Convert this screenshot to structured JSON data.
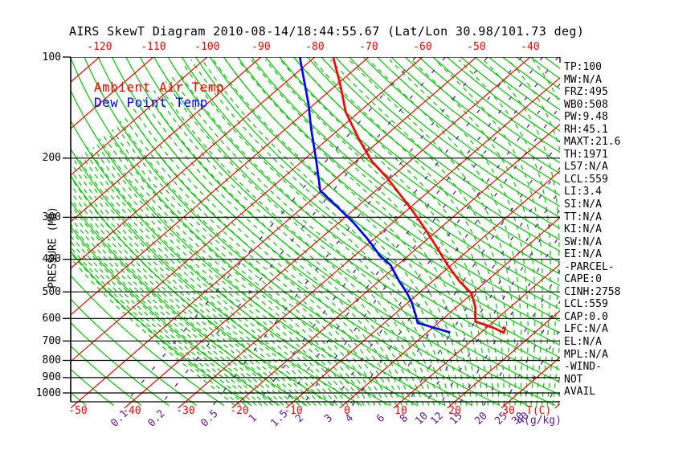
{
  "title": "AIRS SkewT Diagram 2010-08-14/18:44:55.67 (Lat/Lon 30.98/101.73 deg)",
  "legend": {
    "ambient_label": "Ambient Air Temp",
    "dew_label": "Dew Point Temp"
  },
  "info_panel": {
    "lines": [
      "TP:100",
      "MW:N/A",
      "FRZ:495",
      "WB0:508",
      "PW:9.48",
      "RH:45.1",
      "MAXT:21.6",
      "TH:1971",
      "L57:N/A",
      "LCL:559",
      "LI:3.4",
      "SI:N/A",
      "TT:N/A",
      "KI:N/A",
      "SW:N/A",
      "EI:N/A",
      "-PARCEL-",
      "CAPE:0",
      "CINH:2758",
      "LCL:559",
      "CAP:0.0",
      "LFC:N/A",
      "EL:N/A",
      "MPL:N/A",
      "-WIND-",
      "NOT",
      "AVAIL"
    ]
  },
  "chart_data": {
    "type": "line",
    "subtype": "skewt-log-p",
    "title": "AIRS SkewT Diagram 2010-08-14/18:44:55.67 (Lat/Lon 30.98/101.73 deg)",
    "pressure_axis_label": "PRESSURE (MB)",
    "temp_axis_label": "T(C)",
    "mixing_axis_label": "(g/kg)",
    "pressure_ticks_mb": [
      100,
      200,
      300,
      400,
      500,
      600,
      700,
      800,
      900,
      1000
    ],
    "top_temp_ticks_c": [
      -120,
      -110,
      -100,
      -90,
      -80,
      -70,
      -60,
      -50,
      -40
    ],
    "bottom_temp_ticks_c": [
      -50,
      -40,
      -30,
      -20,
      -10,
      0,
      10,
      20,
      30
    ],
    "mixing_ratio_ticks_gkg": [
      0.1,
      0.2,
      0.5,
      1,
      1.5,
      2,
      3,
      4,
      6,
      8,
      10,
      12,
      15,
      20,
      25,
      30
    ],
    "mixing_ratio_lines_gkg": [
      0.1,
      0.2,
      0.5,
      1,
      1.5,
      2,
      3,
      4,
      6,
      8,
      10,
      12,
      15,
      20,
      25,
      30,
      40
    ],
    "overlap_tick_gkg": "40",
    "isotherms_c": {
      "min": -130,
      "max": 40,
      "step": 10
    },
    "dry_adiabats_theta_k": {
      "min": 210,
      "max": 470,
      "step": 5
    },
    "moist_adiabats_start_c": {
      "min": -20,
      "max": 40,
      "step": 1
    },
    "pressure_range_mb": [
      100,
      1000
    ],
    "colors": {
      "isotherm": "#ff0000",
      "dry_adiabat": "#00c800",
      "moist_adiabat": "#00c800",
      "mixing_ratio": "#5a1b9a",
      "isobar": "#000000",
      "ambient": "#ff0000",
      "dewpoint": "#0000ff"
    },
    "series": [
      {
        "name": "Ambient Air Temp",
        "color": "#ff0000",
        "points": [
          {
            "p": 100,
            "t": -76.6
          },
          {
            "p": 121,
            "t": -69.3
          },
          {
            "p": 146,
            "t": -62.4
          },
          {
            "p": 177,
            "t": -53.8
          },
          {
            "p": 204,
            "t": -47.1
          },
          {
            "p": 227,
            "t": -41.1
          },
          {
            "p": 254,
            "t": -35.2
          },
          {
            "p": 286,
            "t": -29.0
          },
          {
            "p": 325,
            "t": -22.6
          },
          {
            "p": 367,
            "t": -16.7
          },
          {
            "p": 416,
            "t": -10.7
          },
          {
            "p": 465,
            "t": -5.0
          },
          {
            "p": 505,
            "t": -0.2
          },
          {
            "p": 555,
            "t": 3.5
          },
          {
            "p": 613,
            "t": 6.6
          },
          {
            "p": 628,
            "t": 9.3
          },
          {
            "p": 644,
            "t": 11.9
          },
          {
            "p": 662,
            "t": 14.3
          },
          {
            "p": 637,
            "t": 13.4
          }
        ]
      },
      {
        "name": "Dew Point Temp",
        "color": "#0000ff",
        "points": [
          {
            "p": 100,
            "t": -82.8
          },
          {
            "p": 117,
            "t": -77.1
          },
          {
            "p": 138,
            "t": -71.1
          },
          {
            "p": 163,
            "t": -65.4
          },
          {
            "p": 187,
            "t": -60.5
          },
          {
            "p": 204,
            "t": -57.4
          },
          {
            "p": 250,
            "t": -50.3
          },
          {
            "p": 279,
            "t": -43.7
          },
          {
            "p": 311,
            "t": -37.3
          },
          {
            "p": 347,
            "t": -31.3
          },
          {
            "p": 390,
            "t": -25.3
          },
          {
            "p": 416,
            "t": -21.3
          },
          {
            "p": 465,
            "t": -16.2
          },
          {
            "p": 497,
            "t": -12.9
          },
          {
            "p": 534,
            "t": -9.6
          },
          {
            "p": 580,
            "t": -6.3
          },
          {
            "p": 619,
            "t": -3.8
          },
          {
            "p": 633,
            "t": -1.0
          },
          {
            "p": 647,
            "t": 1.7
          },
          {
            "p": 661,
            "t": 4.3
          }
        ]
      }
    ]
  }
}
